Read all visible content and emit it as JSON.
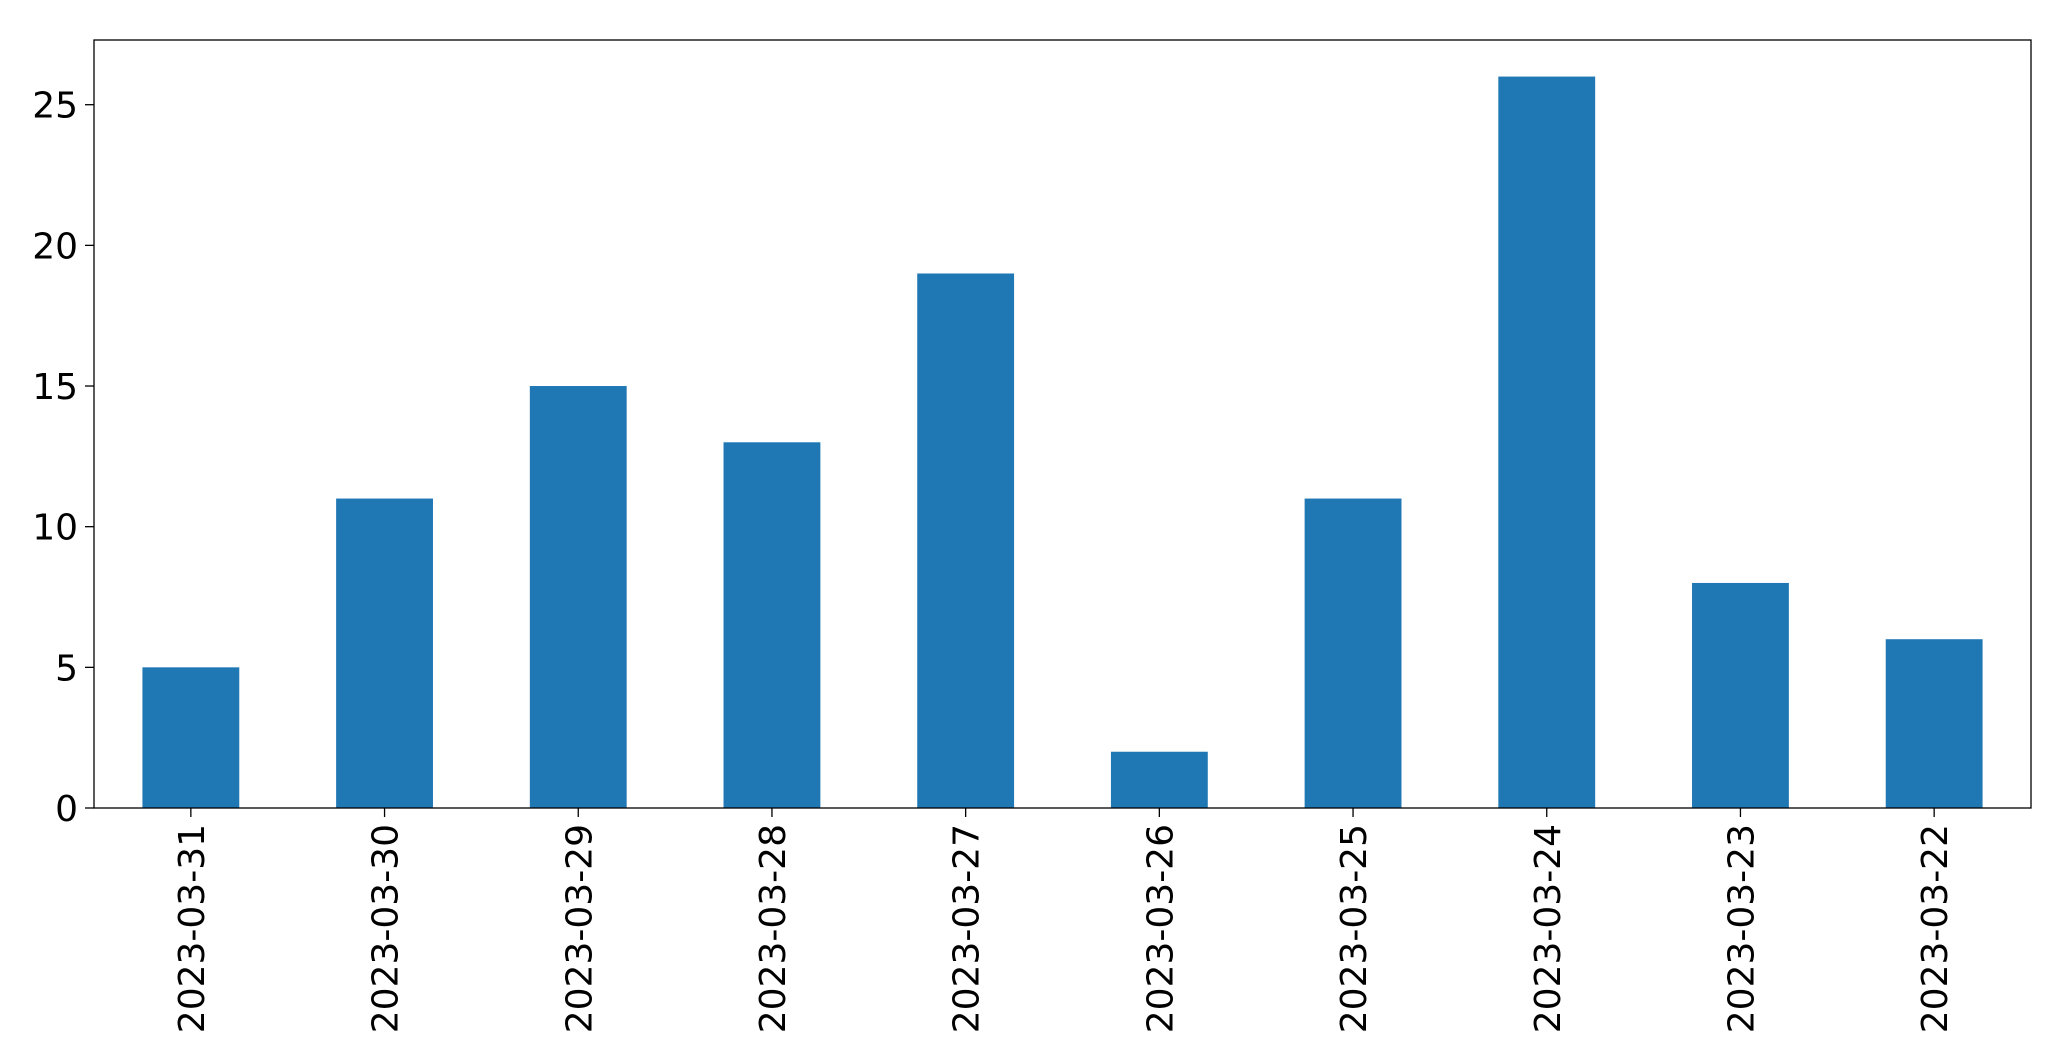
{
  "chart_data": {
    "type": "bar",
    "categories": [
      "2023-03-31",
      "2023-03-30",
      "2023-03-29",
      "2023-03-28",
      "2023-03-27",
      "2023-03-26",
      "2023-03-25",
      "2023-03-24",
      "2023-03-23",
      "2023-03-22"
    ],
    "values": [
      5,
      11,
      15,
      13,
      19,
      2,
      11,
      26,
      8,
      6
    ],
    "color": "#1f77b4",
    "ylim": [
      0,
      27.3
    ],
    "yticks": [
      0,
      5,
      10,
      15,
      20,
      25
    ],
    "grid": false
  }
}
